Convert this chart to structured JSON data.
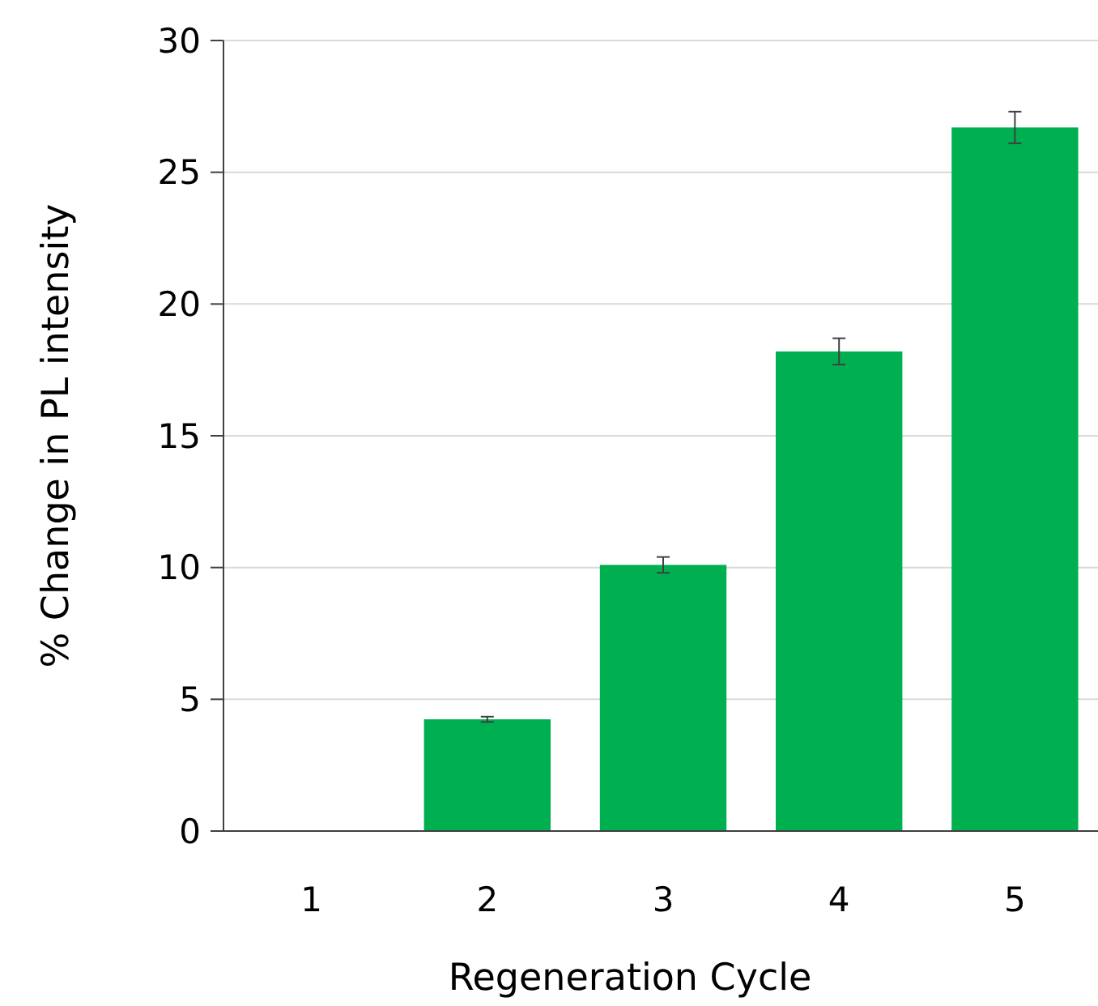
{
  "chart_data": {
    "type": "bar",
    "xlabel": "Regeneration Cycle",
    "ylabel": "% Change in PL intensity",
    "categories": [
      "1",
      "2",
      "3",
      "4",
      "5"
    ],
    "values": [
      0,
      4.24,
      10.1,
      18.2,
      26.7
    ],
    "errors": [
      null,
      0.1,
      0.3,
      0.5,
      0.6
    ],
    "color": "#00b050",
    "ylim": [
      0,
      30
    ],
    "yticks": [
      0,
      5,
      10,
      15,
      20,
      25,
      30
    ],
    "grid": "y"
  }
}
